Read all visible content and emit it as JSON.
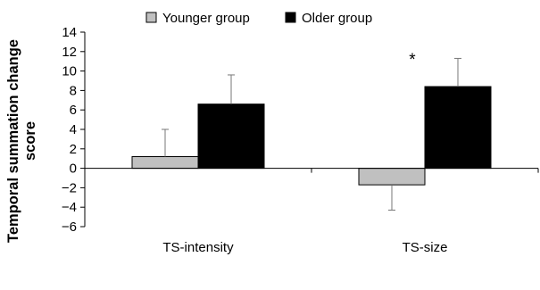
{
  "chart_data": {
    "type": "bar",
    "title": "",
    "xlabel": "",
    "ylabel_lines": [
      "Temporal summation change",
      "score"
    ],
    "categories": [
      "TS-intensity",
      "TS-size"
    ],
    "series": [
      {
        "name": "Younger group",
        "values": [
          1.2,
          -1.7
        ],
        "errors": [
          2.8,
          2.6
        ],
        "color": "#c0c0c0"
      },
      {
        "name": "Older group",
        "values": [
          6.6,
          8.4
        ],
        "errors": [
          3.0,
          2.9
        ],
        "color": "#000000"
      }
    ],
    "yticks": [
      14,
      12,
      10,
      8,
      6,
      4,
      2,
      0,
      -2,
      -4,
      -6
    ],
    "ylim": [
      -6,
      14
    ],
    "grid": false,
    "legend_position": "top",
    "annotations": [
      {
        "text": "*",
        "category": "TS-size",
        "series": "Older group"
      }
    ]
  }
}
